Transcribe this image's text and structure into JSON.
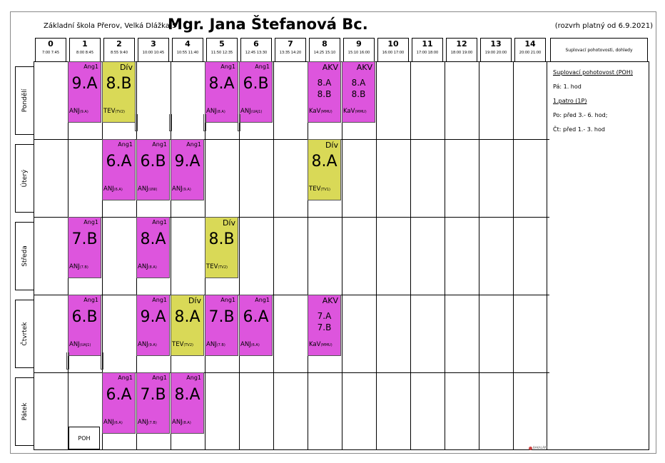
{
  "header": {
    "school": "Základní škola Přerov, Velká Dlážka 5",
    "teacher": "Mgr. Jana Štefanová Bc.",
    "validity": "(rozvrh platný od 6.9.2021)"
  },
  "periods": [
    {
      "num": "0",
      "time": "7:00 7:45"
    },
    {
      "num": "1",
      "time": "8:00 8:45"
    },
    {
      "num": "2",
      "time": "8:55 9:40"
    },
    {
      "num": "3",
      "time": "10:00 10:45"
    },
    {
      "num": "4",
      "time": "10:55 11:40"
    },
    {
      "num": "5",
      "time": "11:50 12:35"
    },
    {
      "num": "6",
      "time": "12:45 13:30"
    },
    {
      "num": "7",
      "time": "13:35 14:20"
    },
    {
      "num": "8",
      "time": "14:25 15:10"
    },
    {
      "num": "9",
      "time": "15:10 16:00"
    },
    {
      "num": "10",
      "time": "16:00 17:00"
    },
    {
      "num": "11",
      "time": "17:00 18:00"
    },
    {
      "num": "12",
      "time": "18:00 19:00"
    },
    {
      "num": "13",
      "time": "19:00 20:00"
    },
    {
      "num": "14",
      "time": "20:00 21:00"
    }
  ],
  "supervision_header": "Suplovací pohotovosti, dohledy",
  "days": [
    "Pondělí",
    "Úterý",
    "Středa",
    "Čtvrtek",
    "Pátek"
  ],
  "lessons": [
    {
      "day": 0,
      "period": 1,
      "subject": "Ang1",
      "cls": "9.A",
      "room": "ANJ",
      "room_code": "(9.A)",
      "kind": "ang"
    },
    {
      "day": 0,
      "period": 2,
      "subject": "Dív",
      "cls": "8.B",
      "room": "TEV",
      "room_code": "(TV2)",
      "kind": "tev"
    },
    {
      "day": 0,
      "period": 5,
      "subject": "Ang1",
      "cls": "8.A",
      "room": "ANJ",
      "room_code": "(8.A)",
      "kind": "ang"
    },
    {
      "day": 0,
      "period": 6,
      "subject": "Ang1",
      "cls": "6.B",
      "room": "ANJ",
      "room_code": "(UAJ1)",
      "kind": "ang"
    },
    {
      "day": 0,
      "period": 8,
      "subject": "AKV",
      "cls_lines": [
        "8.A",
        "8.B"
      ],
      "room": "KaV",
      "room_code": "(MMU)",
      "kind": "ang"
    },
    {
      "day": 0,
      "period": 9,
      "subject": "AKV",
      "cls_lines": [
        "8.A",
        "8.B"
      ],
      "room": "KaV",
      "room_code": "(MMU)",
      "kind": "ang"
    },
    {
      "day": 1,
      "period": 2,
      "subject": "Ang1",
      "cls": "6.A",
      "room": "ANJ",
      "room_code": "(6.A)",
      "kind": "ang"
    },
    {
      "day": 1,
      "period": 3,
      "subject": "Ang1",
      "cls": "6.B",
      "room": "ANJ",
      "room_code": "(UNI)",
      "kind": "ang"
    },
    {
      "day": 1,
      "period": 4,
      "subject": "Ang1",
      "cls": "9.A",
      "room": "ANJ",
      "room_code": "(9.A)",
      "kind": "ang"
    },
    {
      "day": 1,
      "period": 8,
      "subject": "Dív",
      "cls": "8.A",
      "room": "TEV",
      "room_code": "(TV1)",
      "kind": "tev"
    },
    {
      "day": 2,
      "period": 1,
      "subject": "Ang1",
      "cls": "7.B",
      "room": "ANJ",
      "room_code": "(7.B)",
      "kind": "ang"
    },
    {
      "day": 2,
      "period": 3,
      "subject": "Ang1",
      "cls": "8.A",
      "room": "ANJ",
      "room_code": "(8.A)",
      "kind": "ang"
    },
    {
      "day": 2,
      "period": 5,
      "subject": "Dív",
      "cls": "8.B",
      "room": "TEV",
      "room_code": "(TV2)",
      "kind": "tev"
    },
    {
      "day": 3,
      "period": 1,
      "subject": "Ang1",
      "cls": "6.B",
      "room": "ANJ",
      "room_code": "(UAJ1)",
      "kind": "ang"
    },
    {
      "day": 3,
      "period": 3,
      "subject": "Ang1",
      "cls": "9.A",
      "room": "ANJ",
      "room_code": "(9.A)",
      "kind": "ang"
    },
    {
      "day": 3,
      "period": 4,
      "subject": "Dív",
      "cls": "8.A",
      "room": "TEV",
      "room_code": "(TV2)",
      "kind": "tev"
    },
    {
      "day": 3,
      "period": 5,
      "subject": "Ang1",
      "cls": "7.B",
      "room": "ANJ",
      "room_code": "(7.B)",
      "kind": "ang"
    },
    {
      "day": 3,
      "period": 6,
      "subject": "Ang1",
      "cls": "6.A",
      "room": "ANJ",
      "room_code": "(6.A)",
      "kind": "ang"
    },
    {
      "day": 3,
      "period": 8,
      "subject": "AKV",
      "cls_lines": [
        "7.A",
        "7.B"
      ],
      "room": "KaV",
      "room_code": "(MMU)",
      "kind": "ang"
    },
    {
      "day": 4,
      "period": 2,
      "subject": "Ang1",
      "cls": "6.A",
      "room": "ANJ",
      "room_code": "(6.A)",
      "kind": "ang"
    },
    {
      "day": 4,
      "period": 3,
      "subject": "Ang1",
      "cls": "7.B",
      "room": "ANJ",
      "room_code": "(7.B)",
      "kind": "ang"
    },
    {
      "day": 4,
      "period": 4,
      "subject": "Ang1",
      "cls": "8.A",
      "room": "ANJ",
      "room_code": "(8.A)",
      "kind": "ang"
    }
  ],
  "poh_label": "POH",
  "supervision": {
    "title": "Suplovací pohotovost (POH)",
    "line1": "Pá: 1. hod",
    "floor": "1.patro (1P)",
    "line2": "Po: před 3.- 6. hod;",
    "line3": "Čt: před 1.- 3. hod"
  },
  "logo_text": "BAKALÁŘI"
}
